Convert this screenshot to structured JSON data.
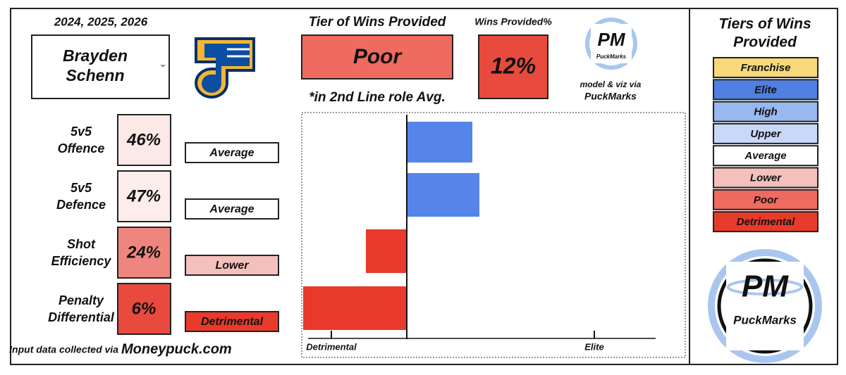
{
  "header": {
    "years": "2024, 2025, 2026",
    "player": [
      "Brayden",
      "Schenn"
    ]
  },
  "tier": {
    "title": "Tier of Wins Provided",
    "value": "Poor",
    "note": "*in 2nd Line role Avg."
  },
  "wins": {
    "title": "Wins Provided%",
    "value": "12%"
  },
  "credit": {
    "logo": "PM",
    "brand": "PuckMarks",
    "line1": "model & viz via",
    "line2": "PuckMarks"
  },
  "metrics": [
    {
      "label": [
        "5v5",
        "Offence"
      ],
      "pct": "46%",
      "pct_color": "#fbe8e7",
      "tier": "Average",
      "tier_color": "#ffffff"
    },
    {
      "label": [
        "5v5",
        "Defence"
      ],
      "pct": "47%",
      "pct_color": "#fcecea",
      "tier": "Average",
      "tier_color": "#ffffff"
    },
    {
      "label": [
        "Shot",
        "Efficiency"
      ],
      "pct": "24%",
      "pct_color": "#ef857f",
      "tier": "Lower",
      "tier_color": "#f4c0bc"
    },
    {
      "label": [
        "Penalty",
        "Differential"
      ],
      "pct": "6%",
      "pct_color": "#e84a3e",
      "tier": "Detrimental",
      "tier_color": "#e83a2a"
    }
  ],
  "legend": {
    "title": [
      "Tiers of Wins",
      "Provided"
    ],
    "tiers": [
      {
        "name": "Franchise",
        "color": "#f8d97a"
      },
      {
        "name": "Elite",
        "color": "#4f7fe0"
      },
      {
        "name": "High",
        "color": "#98b8f0"
      },
      {
        "name": "Upper",
        "color": "#c9d8fa"
      },
      {
        "name": "Average",
        "color": "#ffffff"
      },
      {
        "name": "Lower",
        "color": "#f4c0bc"
      },
      {
        "name": "Poor",
        "color": "#ef6a5f"
      },
      {
        "name": "Detrimental",
        "color": "#e83a2a"
      }
    ]
  },
  "footer": {
    "prefix": "Input data collected via",
    "source": "Moneypuck.com"
  },
  "chart_data": {
    "type": "hbar",
    "values": [
      93,
      103,
      -58,
      -147
    ],
    "colors": [
      "#5585e8",
      "#5585e8",
      "#e83a2a",
      "#e83a2a"
    ],
    "xlim": [
      -147,
      353
    ],
    "xticks": [
      {
        "value": -107,
        "label": "Detrimental"
      },
      {
        "value": 266,
        "label": "Elite"
      }
    ]
  }
}
